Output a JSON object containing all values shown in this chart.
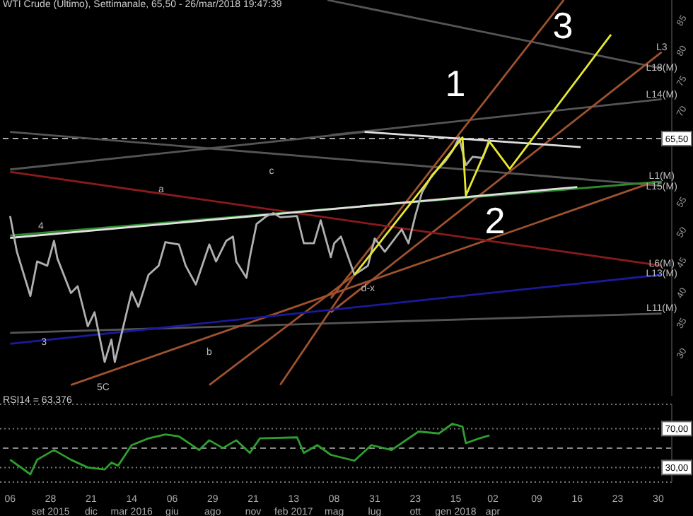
{
  "chart_data": [
    {
      "type": "line",
      "title": "WTI Crude (Ultimo), Settimanale, 65,50 - 26/mar/2018 19:47:39",
      "xlim": [
        "2015-06-15",
        "2019-04-08"
      ],
      "ylim": [
        23,
        88.4
      ],
      "yticks": [
        30,
        35,
        40,
        45,
        50,
        55,
        70,
        75,
        80,
        85
      ],
      "tick_labels": "y",
      "marker": "none",
      "line_style": "solid",
      "ref_lines": [
        {
          "axis": "y",
          "value": 65.5,
          "label": "65,50",
          "color": "#aaaaaa",
          "line_style": "dashed"
        }
      ],
      "annotations": [
        "1",
        "2",
        "3",
        "a",
        "b",
        "c",
        "4",
        {
          "text": "3",
          "x": "2015-09-14",
          "y": 31.8
        },
        "5C",
        {
          "text": "d-x",
          "x": "2017-07-17",
          "y": 40.7
        },
        {
          "text": "L3",
          "x": "2019-03-18",
          "y": 80.5
        },
        {
          "text": "L18(M)",
          "x": "2019-03-18",
          "y": 77.1
        },
        {
          "text": "L14(M)",
          "x": "2019-03-18",
          "y": 72.7
        },
        {
          "text": "L1(M)",
          "x": "2019-03-18",
          "y": 59.3
        },
        {
          "text": "L15(M)",
          "x": "2019-03-18",
          "y": 57.5
        },
        {
          "text": "L6(M)",
          "x": "2019-03-18",
          "y": 44.8
        },
        {
          "text": "L13(M)",
          "x": "2019-03-18",
          "y": 43.2
        },
        {
          "text": "L11(M)",
          "x": "2019-03-18",
          "y": 37.5
        }
      ],
      "series": [
        {
          "color": "#555555",
          "x": [
            "2017-04-24",
            "2019-03-18"
          ],
          "values": [
            88.4,
            77.1
          ]
        },
        {
          "color": "#555555",
          "x": [
            "2017-05-01",
            "2019-03-18"
          ],
          "values": [
            66.1,
            72
          ]
        },
        {
          "color": "#555555",
          "x": [
            "2015-07-06",
            "2019-03-18"
          ],
          "values": [
            66.6,
            57.7
          ]
        },
        {
          "color": "#555555",
          "x": [
            "2015-07-06",
            "2017-07-10"
          ],
          "values": [
            60.4,
            66.6
          ]
        },
        {
          "color": "#555555",
          "x": [
            "2015-07-06",
            "2019-03-18"
          ],
          "values": [
            33.4,
            36.6
          ]
        },
        {
          "color": "#a0522d",
          "x": [
            "2017-05-01",
            "2018-08-27"
          ],
          "values": [
            39.1,
            88.4
          ]
        },
        {
          "color": "#a0522d",
          "x": [
            "2017-05-01",
            "2019-03-18"
          ],
          "values": [
            36.8,
            79.8
          ]
        },
        {
          "color": "#a0522d",
          "x": [
            "2015-11-09",
            "2019-03-04"
          ],
          "values": [
            24.8,
            58.4
          ]
        },
        {
          "color": "#a0522d",
          "x": [
            "2016-08-22",
            "2017-06-19"
          ],
          "values": [
            24.8,
            43
          ]
        },
        {
          "color": "#a0522d",
          "x": [
            "2017-01-16",
            "2017-06-19"
          ],
          "values": [
            24.8,
            43
          ]
        },
        {
          "color": "#8b1a1a",
          "x": [
            "2015-07-06",
            "2019-03-18"
          ],
          "values": [
            60,
            44.5
          ]
        },
        {
          "color": "#1a1a9b",
          "x": [
            "2015-07-06",
            "2019-03-18"
          ],
          "values": [
            31.6,
            43
          ]
        },
        {
          "color": "#2e8b2e",
          "x": [
            "2015-07-06",
            "2019-03-18"
          ],
          "values": [
            49.5,
            58.4
          ]
        },
        {
          "color": "#e0e0e0",
          "x": [
            "2015-07-06",
            "2018-09-24"
          ],
          "values": [
            49.1,
            57.5
          ]
        },
        {
          "color": "#e0e0e0",
          "x": [
            "2017-07-10",
            "2018-10-01"
          ],
          "values": [
            66.6,
            64.1
          ]
        },
        {
          "color": "#b0b0b0",
          "x": [
            "2015-07-06",
            "2015-07-20",
            "2015-08-17",
            "2015-08-31",
            "2015-09-21",
            "2015-10-05",
            "2015-10-12",
            "2015-11-09",
            "2015-11-23",
            "2015-12-14",
            "2015-12-28",
            "2016-01-18",
            "2016-02-01",
            "2016-02-08",
            "2016-03-14",
            "2016-03-28",
            "2016-04-18",
            "2016-05-09",
            "2016-05-23",
            "2016-06-20",
            "2016-07-04",
            "2016-07-25",
            "2016-08-22",
            "2016-09-05",
            "2016-09-26",
            "2016-10-10",
            "2016-10-17",
            "2016-11-07",
            "2016-11-14",
            "2016-11-28",
            "2016-12-19",
            "2017-01-02",
            "2017-01-16",
            "2017-02-20",
            "2017-03-06",
            "2017-03-27",
            "2017-04-10",
            "2017-05-01",
            "2017-05-08",
            "2017-05-22",
            "2017-06-19",
            "2017-07-17",
            "2017-07-31",
            "2017-08-21",
            "2017-09-25",
            "2017-10-09",
            "2017-10-23",
            "2017-11-06",
            "2017-11-27",
            "2017-12-25",
            "2018-01-08",
            "2018-01-22",
            "2018-02-05",
            "2018-02-19",
            "2018-03-12",
            "2018-03-26"
          ],
          "values": [
            52.7,
            46.8,
            39.5,
            45.2,
            44.5,
            48.6,
            45.7,
            40,
            41.1,
            34.5,
            36.8,
            28.6,
            32.3,
            28.6,
            40.2,
            37.7,
            43,
            44.5,
            48.4,
            48,
            44.5,
            41.4,
            48,
            45.2,
            48.6,
            49.3,
            45.2,
            42.5,
            45.9,
            51.4,
            52.7,
            53.2,
            52.5,
            52.7,
            48.2,
            48.2,
            52,
            45.9,
            48.2,
            49.3,
            43,
            44.5,
            49,
            46.8,
            50.5,
            48.2,
            52.7,
            56.6,
            59.5,
            61.8,
            63.4,
            65.7,
            61.1,
            62.5,
            62.3,
            65.5
          ]
        },
        {
          "color": "#e8e830",
          "x": [
            "2017-06-19",
            "2018-01-29",
            "2018-02-05",
            "2018-03-26",
            "2018-05-07",
            "2018-12-03"
          ],
          "values": [
            43,
            65.7,
            56.1,
            65,
            60.5,
            82.7
          ]
        }
      ]
    },
    {
      "type": "line",
      "title": "RSI14 = 63,376",
      "xlim": [
        "2015-06-15",
        "2019-04-08"
      ],
      "ylim": [
        15,
        95
      ],
      "yticks": [
        {
          "value": 70,
          "label": "70,00"
        },
        {
          "value": 30,
          "label": "30,00"
        }
      ],
      "xticks": [
        {
          "value": "2015-07-06",
          "label": "06"
        },
        {
          "value": "2015-09-28",
          "label": "28\nset 2015"
        },
        {
          "value": "2015-12-21",
          "label": "21\ndic"
        },
        {
          "value": "2016-03-14",
          "label": "14\nmar 2016"
        },
        {
          "value": "2016-06-06",
          "label": "06\ngiu"
        },
        {
          "value": "2016-08-29",
          "label": "29\nago"
        },
        {
          "value": "2016-11-21",
          "label": "21\nnov"
        },
        {
          "value": "2017-02-13",
          "label": "13\nfeb 2017"
        },
        {
          "value": "2017-05-08",
          "label": "08\nmag"
        },
        {
          "value": "2017-07-31",
          "label": "31\nlug"
        },
        {
          "value": "2017-10-23",
          "label": "23\nott"
        },
        {
          "value": "2018-01-15",
          "label": "15\ngen 2018"
        },
        {
          "value": "2018-04-02",
          "label": "02\napr"
        },
        {
          "value": "2018-07-02",
          "label": "09"
        },
        {
          "value": "2018-09-24",
          "label": "16"
        },
        {
          "value": "2018-12-17",
          "label": "23"
        },
        {
          "value": "2019-03-11",
          "label": "30"
        }
      ],
      "grid": "y",
      "marker": "none",
      "line_style": "solid",
      "ref_lines": [
        {
          "axis": "y",
          "value": 50,
          "color": "#888888",
          "line_style": "dashed"
        }
      ],
      "series": [
        {
          "color": "#2e9e2e",
          "x": [
            "2015-07-06",
            "2015-08-17",
            "2015-08-31",
            "2015-10-05",
            "2015-11-09",
            "2015-12-14",
            "2016-01-18",
            "2016-02-01",
            "2016-02-15",
            "2016-03-14",
            "2016-04-18",
            "2016-05-23",
            "2016-06-20",
            "2016-08-01",
            "2016-08-22",
            "2016-09-19",
            "2016-10-17",
            "2016-11-14",
            "2016-12-05",
            "2017-02-20",
            "2017-03-06",
            "2017-04-03",
            "2017-05-01",
            "2017-06-19",
            "2017-07-24",
            "2017-09-04",
            "2017-10-30",
            "2017-12-11",
            "2018-01-08",
            "2018-01-29",
            "2018-02-05",
            "2018-03-05",
            "2018-03-26"
          ],
          "values": [
            38,
            23,
            38,
            48,
            38,
            30,
            28,
            35,
            32,
            53,
            60,
            64,
            62,
            48,
            58,
            50,
            58,
            45,
            60,
            61,
            45,
            53,
            43,
            37,
            53,
            48,
            67,
            65,
            75,
            72,
            55,
            60,
            63
          ]
        }
      ]
    }
  ]
}
